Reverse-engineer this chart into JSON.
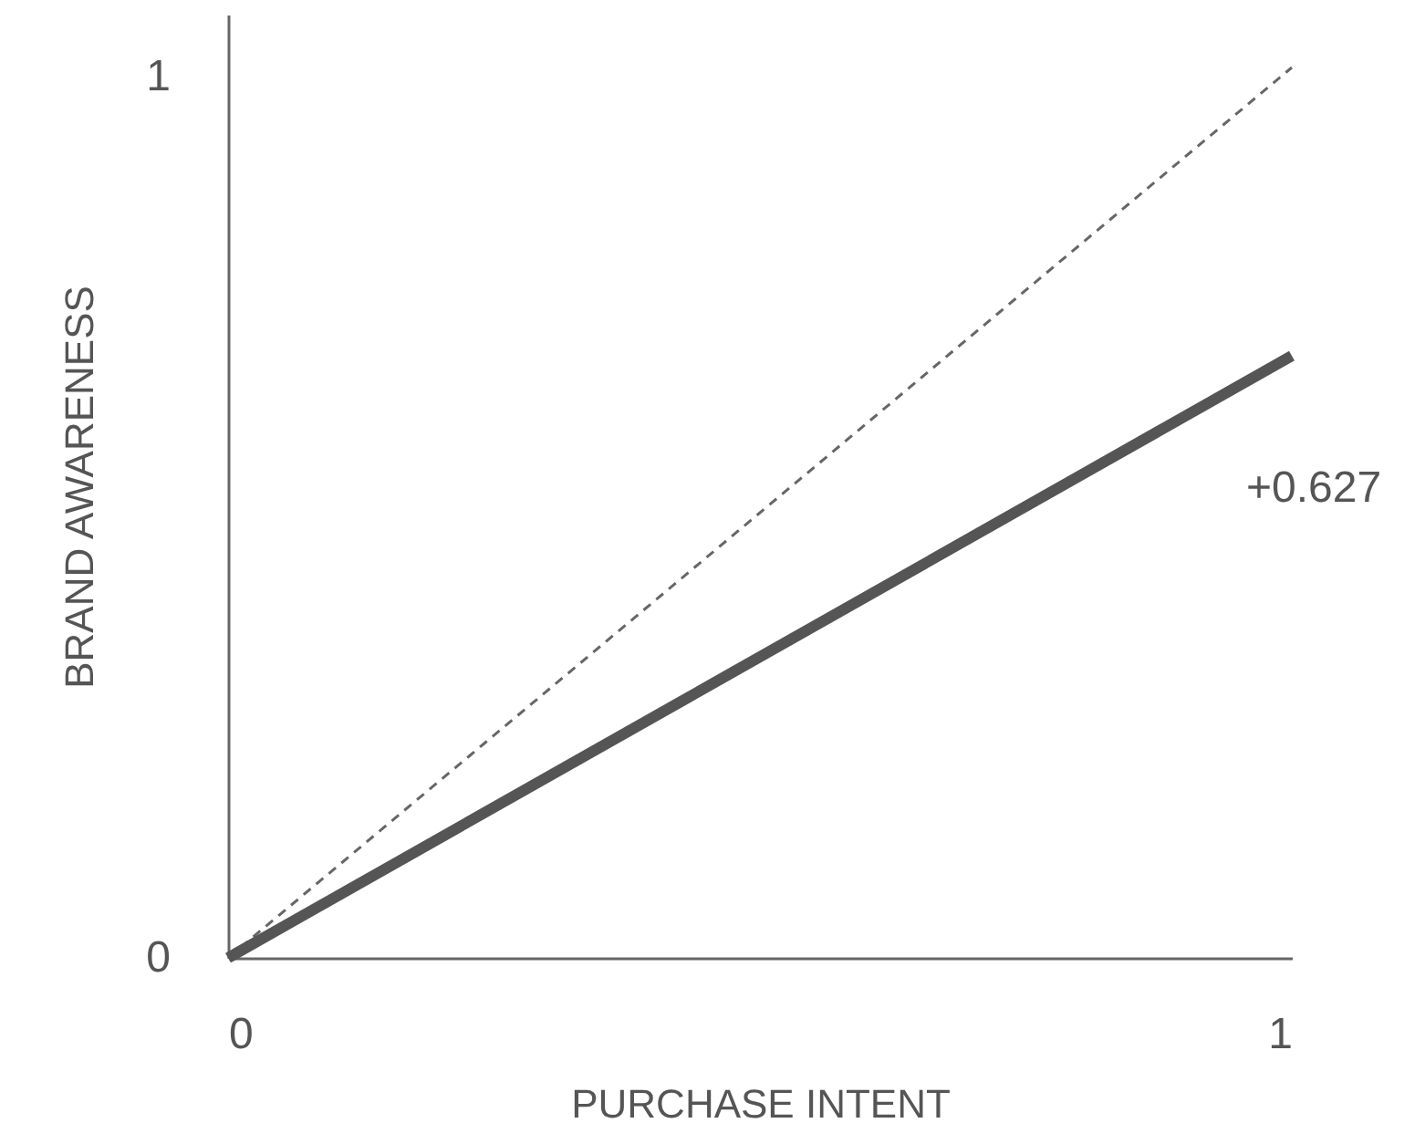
{
  "chart_data": {
    "type": "line",
    "xlabel": "PURCHASE INTENT",
    "ylabel": "BRAND AWARENESS",
    "xlim": [
      0,
      1
    ],
    "ylim": [
      0,
      1.07
    ],
    "xticks": [
      0,
      1
    ],
    "yticks": [
      0,
      1
    ],
    "grid": false,
    "marker": "none",
    "x": [
      0,
      1
    ],
    "series": [
      {
        "color": "#666666",
        "line_style": "dashed",
        "values": [
          0,
          1.01
        ]
      },
      {
        "color": "#555555",
        "line_style": "solid",
        "values": [
          0,
          0.683
        ]
      }
    ],
    "annotations": [
      "+0.627"
    ]
  }
}
